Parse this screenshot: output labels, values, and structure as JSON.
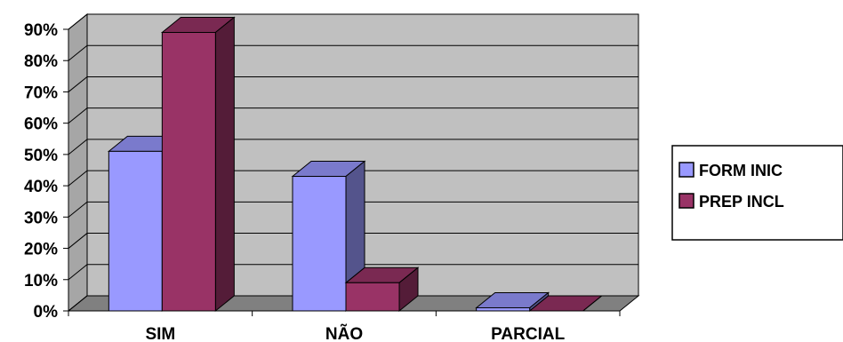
{
  "chart_data": {
    "type": "bar",
    "categories": [
      "SIM",
      "NÃO",
      "PARCIAL"
    ],
    "series": [
      {
        "name": "FORM INIC",
        "values": [
          51,
          43,
          1
        ],
        "color": "#9999FF"
      },
      {
        "name": "PREP INCL",
        "values": [
          89,
          9,
          0
        ],
        "color": "#993366"
      }
    ],
    "ylim": [
      0,
      90
    ],
    "yticks": [
      0,
      10,
      20,
      30,
      40,
      50,
      60,
      70,
      80,
      90
    ],
    "ytick_labels": [
      "0%",
      "10%",
      "20%",
      "30%",
      "40%",
      "50%",
      "60%",
      "70%",
      "80%",
      "90%"
    ],
    "grid": true,
    "three_d": true,
    "wall_color": "#C0C0C0",
    "legend_position": "right"
  }
}
